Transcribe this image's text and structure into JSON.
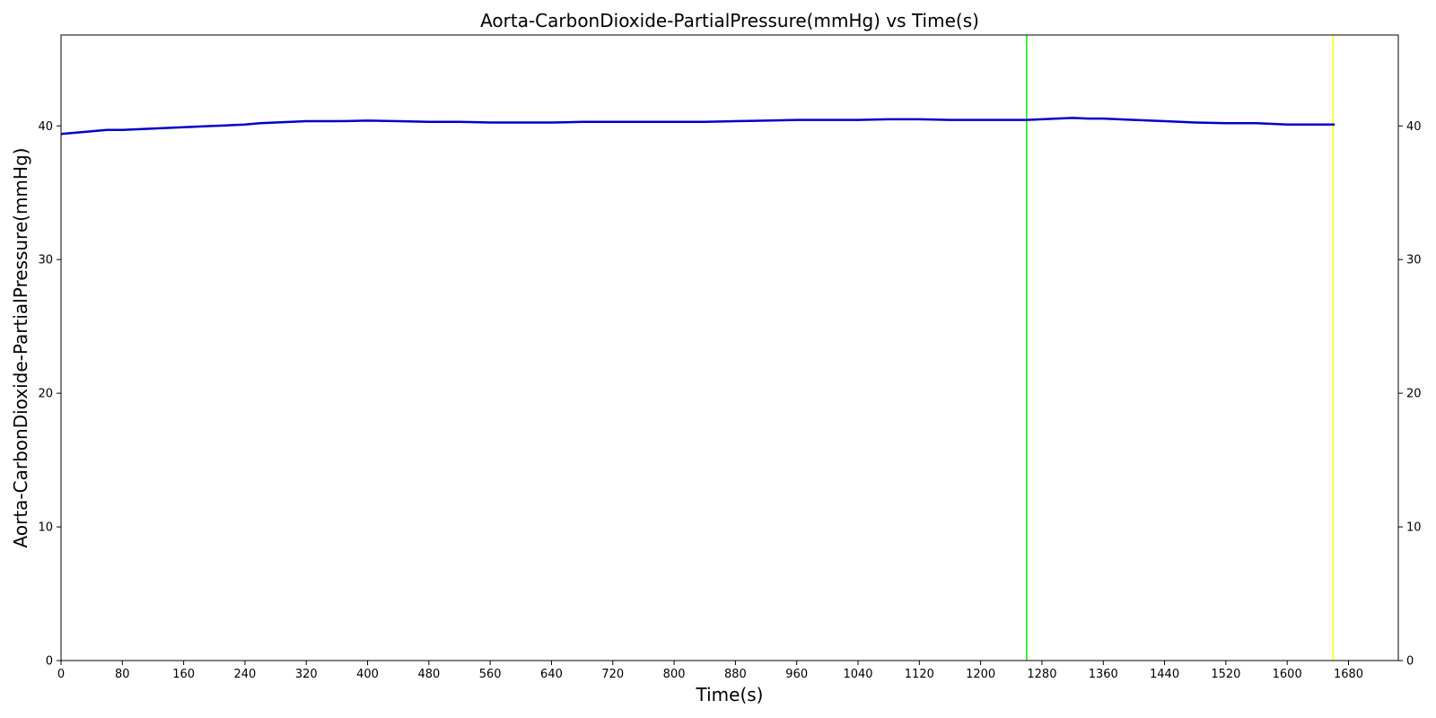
{
  "chart_data": {
    "type": "line",
    "title": "Aorta-CarbonDioxide-PartialPressure(mmHg) vs Time(s)",
    "xlabel": "Time(s)",
    "ylabel": "Aorta-CarbonDioxide-PartialPressure(mmHg)",
    "xlim": [
      0,
      1745
    ],
    "ylim": [
      0,
      46.8
    ],
    "x_ticks": [
      0,
      80,
      160,
      240,
      320,
      400,
      480,
      560,
      640,
      720,
      800,
      880,
      960,
      1040,
      1120,
      1200,
      1280,
      1360,
      1440,
      1520,
      1600,
      1680
    ],
    "y_ticks": [
      0,
      10,
      20,
      30,
      40
    ],
    "right_axis_ticks": [
      0,
      10,
      20,
      30,
      40
    ],
    "grid": false,
    "legend": "none",
    "series": [
      {
        "color": "#0000cc",
        "x": [
          0,
          20,
          40,
          60,
          80,
          100,
          120,
          140,
          160,
          180,
          200,
          220,
          240,
          260,
          280,
          300,
          320,
          360,
          400,
          440,
          480,
          520,
          560,
          600,
          640,
          680,
          720,
          760,
          800,
          840,
          880,
          920,
          960,
          1000,
          1040,
          1080,
          1120,
          1160,
          1200,
          1240,
          1260,
          1280,
          1300,
          1320,
          1340,
          1360,
          1380,
          1400,
          1440,
          1480,
          1520,
          1560,
          1600,
          1640,
          1662
        ],
        "y": [
          39.4,
          39.5,
          39.6,
          39.7,
          39.7,
          39.75,
          39.8,
          39.85,
          39.9,
          39.95,
          40.0,
          40.05,
          40.1,
          40.2,
          40.25,
          40.3,
          40.35,
          40.35,
          40.4,
          40.35,
          40.3,
          40.3,
          40.25,
          40.25,
          40.25,
          40.3,
          40.3,
          40.3,
          40.3,
          40.3,
          40.35,
          40.4,
          40.45,
          40.45,
          40.45,
          40.5,
          40.5,
          40.45,
          40.45,
          40.45,
          40.45,
          40.5,
          40.55,
          40.6,
          40.55,
          40.55,
          40.5,
          40.45,
          40.35,
          40.25,
          40.2,
          40.2,
          40.1,
          40.1,
          40.1
        ]
      }
    ],
    "vertical_markers": [
      {
        "x": 1260,
        "color": "#00ee00"
      },
      {
        "x": 1660,
        "color": "#ffff00"
      }
    ]
  }
}
